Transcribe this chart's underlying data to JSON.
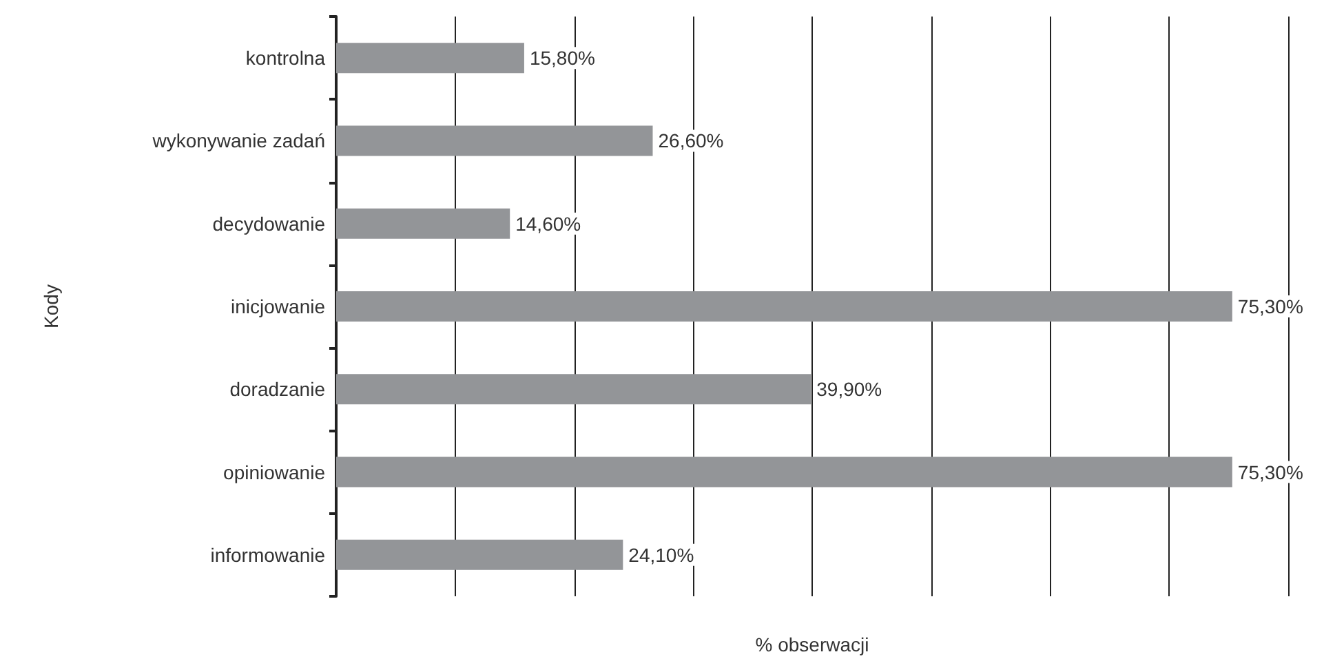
{
  "chart_data": {
    "type": "bar",
    "orientation": "horizontal",
    "xlabel": "% obserwacji",
    "ylabel": "Kody",
    "categories": [
      "kontrolna",
      "wykonywanie zadań",
      "decydowanie",
      "inicjowanie",
      "doradzanie",
      "opiniowanie",
      "informowanie"
    ],
    "values": [
      15.8,
      26.6,
      14.6,
      75.3,
      39.9,
      75.3,
      24.1
    ],
    "value_labels": [
      "15,80%",
      "26,60%",
      "14,60%",
      "75,30%",
      "39,90%",
      "75,30%",
      "24,10%"
    ],
    "color": "#939598",
    "xlim": [
      0,
      80
    ],
    "xticks": [
      {
        "value": 0,
        "label": null
      },
      {
        "value": 10,
        "label": null
      },
      {
        "value": 20,
        "label": null
      },
      {
        "value": 30,
        "label": null
      },
      {
        "value": 40,
        "label": null
      },
      {
        "value": 50,
        "label": null
      },
      {
        "value": 60,
        "label": null
      },
      {
        "value": 70,
        "label": null
      },
      {
        "value": 80,
        "label": null
      }
    ],
    "grid": "x",
    "tick_labels": "y"
  }
}
